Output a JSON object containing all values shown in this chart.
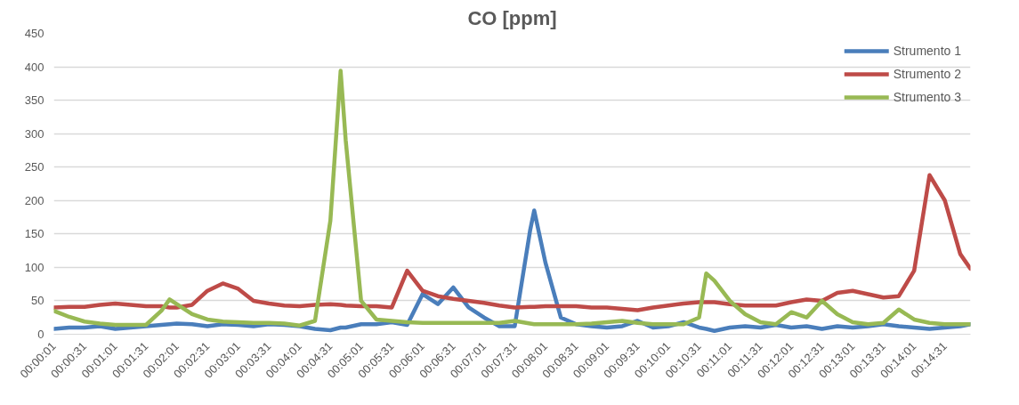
{
  "chart_data": {
    "type": "line",
    "title": "CO [ppm]",
    "x": [
      0.00028,
      0.00444,
      0.00861,
      0.01278,
      0.01694,
      0.02111,
      0.02528,
      0.02944,
      0.03167,
      0.03361,
      0.03778,
      0.04194,
      0.04611,
      0.05028,
      0.05444,
      0.05861,
      0.06278,
      0.06694,
      0.07111,
      0.07528,
      0.07806,
      0.07944,
      0.08361,
      0.08778,
      0.09194,
      0.09611,
      0.10028,
      0.10444,
      0.10861,
      0.11278,
      0.11694,
      0.12111,
      0.12528,
      0.12944,
      0.13056,
      0.13361,
      0.13778,
      0.14194,
      0.14611,
      0.15028,
      0.15444,
      0.15861,
      0.16278,
      0.16694,
      0.17111,
      0.17528,
      0.17722,
      0.17944,
      0.18361,
      0.18778,
      0.19194,
      0.19611,
      0.20028,
      0.20444,
      0.20861,
      0.21278,
      0.21694,
      0.22111,
      0.22528,
      0.22944,
      0.23361,
      0.23778,
      0.24194,
      0.24611,
      0.24889
    ],
    "series": [
      {
        "name": "Strumento 1",
        "color": "#4a7ebb",
        "values": [
          8,
          10,
          10,
          12,
          8,
          10,
          12,
          14,
          15,
          16,
          15,
          12,
          15,
          14,
          12,
          15,
          14,
          12,
          8,
          6,
          10,
          10,
          15,
          15,
          18,
          14,
          60,
          45,
          70,
          40,
          25,
          12,
          12,
          155,
          185,
          107,
          25,
          15,
          12,
          10,
          12,
          20,
          10,
          12,
          18,
          10,
          8,
          5,
          10,
          12,
          10,
          14,
          10,
          12,
          8,
          12,
          10,
          12,
          15,
          12,
          10,
          8,
          10,
          12,
          15
        ]
      },
      {
        "name": "Strumento 2",
        "color": "#be4b48",
        "values": [
          40,
          41,
          41,
          44,
          46,
          44,
          42,
          42,
          40,
          40,
          44,
          65,
          76,
          68,
          50,
          46,
          43,
          42,
          44,
          45,
          44,
          43,
          42,
          42,
          40,
          95,
          65,
          57,
          53,
          50,
          47,
          43,
          40,
          41,
          41,
          42,
          42,
          42,
          40,
          40,
          38,
          36,
          40,
          43,
          46,
          48,
          48,
          48,
          45,
          43,
          43,
          43,
          48,
          52,
          50,
          62,
          65,
          60,
          55,
          57,
          95,
          238,
          200,
          120,
          98
        ]
      },
      {
        "name": "Strumento 3",
        "color": "#98b954",
        "values": [
          35,
          26,
          19,
          16,
          14,
          14,
          14,
          35,
          52,
          45,
          30,
          22,
          19,
          18,
          17,
          17,
          16,
          13,
          20,
          170,
          394,
          290,
          50,
          22,
          20,
          18,
          17,
          17,
          17,
          17,
          17,
          17,
          20,
          16,
          15,
          15,
          15,
          15,
          16,
          18,
          20,
          17,
          15,
          15,
          15,
          25,
          91,
          80,
          50,
          30,
          18,
          15,
          33,
          25,
          50,
          30,
          18,
          15,
          17,
          37,
          22,
          17,
          15,
          15,
          15
        ]
      }
    ],
    "xlim": [
      0.00028,
      0.24889
    ],
    "xticks": [
      {
        "value": 0.00028,
        "label": "00:00:01"
      },
      {
        "value": 0.00861,
        "label": "00:00:31"
      },
      {
        "value": 0.01694,
        "label": "00:01:01"
      },
      {
        "value": 0.02528,
        "label": "00:01:31"
      },
      {
        "value": 0.03361,
        "label": "00:02:01"
      },
      {
        "value": 0.04194,
        "label": "00:02:31"
      },
      {
        "value": 0.05028,
        "label": "00:03:01"
      },
      {
        "value": 0.05861,
        "label": "00:03:31"
      },
      {
        "value": 0.06694,
        "label": "00:04:01"
      },
      {
        "value": 0.07528,
        "label": "00:04:31"
      },
      {
        "value": 0.08361,
        "label": "00:05:01"
      },
      {
        "value": 0.09194,
        "label": "00:05:31"
      },
      {
        "value": 0.10028,
        "label": "00:06:01"
      },
      {
        "value": 0.10861,
        "label": "00:06:31"
      },
      {
        "value": 0.11694,
        "label": "00:07:01"
      },
      {
        "value": 0.12528,
        "label": "00:07:31"
      },
      {
        "value": 0.13361,
        "label": "00:08:01"
      },
      {
        "value": 0.14194,
        "label": "00:08:31"
      },
      {
        "value": 0.15028,
        "label": "00:09:01"
      },
      {
        "value": 0.15861,
        "label": "00:09:31"
      },
      {
        "value": 0.16694,
        "label": "00:10:01"
      },
      {
        "value": 0.17528,
        "label": "00:10:31"
      },
      {
        "value": 0.18361,
        "label": "00:11:01"
      },
      {
        "value": 0.19194,
        "label": "00:11:31"
      },
      {
        "value": 0.20028,
        "label": "00:12:01"
      },
      {
        "value": 0.20861,
        "label": "00:12:31"
      },
      {
        "value": 0.21694,
        "label": "00:13:01"
      },
      {
        "value": 0.22528,
        "label": "00:13:31"
      },
      {
        "value": 0.23361,
        "label": "00:14:01"
      },
      {
        "value": 0.24194,
        "label": "00:14:31"
      }
    ],
    "ylim": [
      0,
      450
    ],
    "yticks": [
      0,
      50,
      100,
      150,
      200,
      250,
      300,
      350,
      400,
      450
    ],
    "grid": "y",
    "legend": "top right",
    "marker": "none",
    "line_style": "solid"
  }
}
